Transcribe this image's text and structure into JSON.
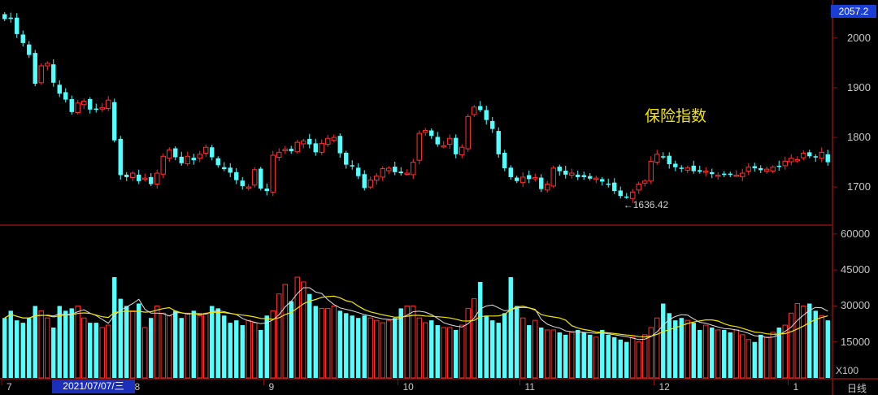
{
  "chart_data": [
    {
      "type": "candlestick",
      "title": "保险指数",
      "last_price_label": "2057.2",
      "min_annotation": "←1636.42",
      "y_ticks": [
        2000,
        1900,
        1800,
        1700
      ],
      "ylim": [
        1625,
        2070
      ],
      "month_labels": [
        {
          "label": "7",
          "index": 0
        },
        {
          "label": "8",
          "index": 21
        },
        {
          "label": "9",
          "index": 43
        },
        {
          "label": "10",
          "index": 65
        },
        {
          "label": "11",
          "index": 85
        },
        {
          "label": "12",
          "index": 107
        },
        {
          "label": "1",
          "index": 129
        }
      ],
      "colors": {
        "up": "#ff3030",
        "down": "#54ffff",
        "title": "#f2e600"
      },
      "close": [
        2038,
        2040,
        2008,
        1990,
        1966,
        1908,
        1944,
        1949,
        1910,
        1888,
        1876,
        1851,
        1869,
        1873,
        1856,
        1857,
        1860,
        1875,
        1794,
        1724,
        1720,
        1728,
        1712,
        1718,
        1706,
        1728,
        1762,
        1775,
        1760,
        1748,
        1762,
        1754,
        1766,
        1780,
        1760,
        1744,
        1736,
        1729,
        1714,
        1702,
        1700,
        1735,
        1697,
        1692,
        1764,
        1770,
        1776,
        1772,
        1790,
        1793,
        1786,
        1770,
        1788,
        1798,
        1800,
        1768,
        1745,
        1742,
        1722,
        1698,
        1714,
        1722,
        1737,
        1738,
        1730,
        1728,
        1728,
        1750,
        1808,
        1814,
        1803,
        1786,
        1783,
        1798,
        1766,
        1780,
        1842,
        1861,
        1855,
        1835,
        1817,
        1766,
        1738,
        1720,
        1712,
        1720,
        1716,
        1719,
        1696,
        1706,
        1738,
        1732,
        1725,
        1728,
        1720,
        1720,
        1717,
        1718,
        1711,
        1706,
        1692,
        1682,
        1680,
        1690,
        1706,
        1712,
        1752,
        1766,
        1760,
        1746,
        1740,
        1737,
        1739,
        1732,
        1731,
        1732,
        1726,
        1724,
        1726,
        1725,
        1724,
        1728,
        1740,
        1738,
        1734,
        1736,
        1740,
        1742,
        1752,
        1758,
        1755,
        1768,
        1762,
        1760,
        1770,
        1750
      ],
      "volume": [
        250,
        280,
        240,
        230,
        250,
        300,
        280,
        250,
        210,
        300,
        280,
        290,
        300,
        250,
        230,
        230,
        210,
        220,
        420,
        330,
        300,
        280,
        310,
        210,
        250,
        300,
        270,
        260,
        280,
        250,
        270,
        280,
        260,
        270,
        300,
        290,
        260,
        230,
        240,
        220,
        240,
        230,
        200,
        260,
        280,
        350,
        390,
        320,
        420,
        400,
        350,
        300,
        290,
        290,
        300,
        280,
        270,
        260,
        250,
        260,
        250,
        240,
        230,
        240,
        250,
        290,
        300,
        300,
        250,
        230,
        240,
        220,
        210,
        210,
        200,
        220,
        290,
        330,
        400,
        260,
        240,
        230,
        270,
        420,
        300,
        250,
        220,
        240,
        210,
        200,
        200,
        190,
        180,
        190,
        200,
        190,
        180,
        170,
        200,
        180,
        170,
        160,
        150,
        170,
        150,
        180,
        210,
        250,
        310,
        270,
        240,
        250,
        240,
        230,
        200,
        220,
        210,
        200,
        200,
        190,
        200,
        180,
        160,
        150,
        180,
        170,
        190,
        210,
        220,
        270,
        310,
        300,
        310,
        280,
        260,
        240
      ]
    }
  ],
  "volume_chart": {
    "type": "bar",
    "y_ticks": [
      "60000",
      "45000",
      "30000",
      "15000"
    ],
    "ylim": [
      0,
      62000
    ],
    "unit": "X100",
    "colors": {
      "ma5": "#e0e0e0",
      "ma10": "#f2e600"
    }
  },
  "x_axis": {
    "cursor_date": "2021/07/07/三",
    "period_label": "日线"
  }
}
